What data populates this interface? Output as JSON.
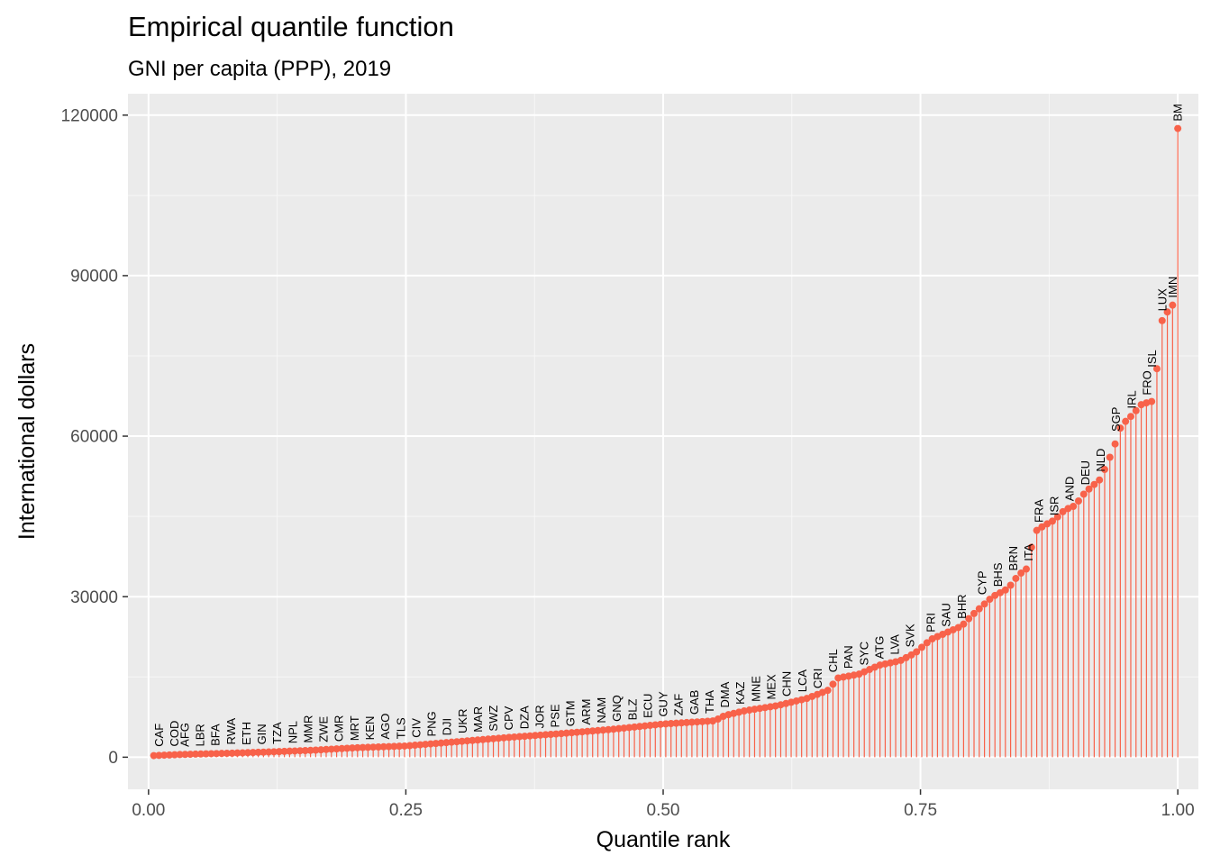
{
  "chart_data": {
    "type": "scatter",
    "title": "Empirical quantile function",
    "subtitle": "GNI per capita (PPP), 2019",
    "xlabel": "Quantile rank",
    "ylabel": "International dollars",
    "xlim": [
      -0.02,
      1.02
    ],
    "ylim": [
      -6000,
      124000
    ],
    "x_ticks": [
      0.0,
      0.25,
      0.5,
      0.75,
      1.0
    ],
    "x_tick_labels": [
      "0.00",
      "0.25",
      "0.50",
      "0.75",
      "1.00"
    ],
    "y_ticks": [
      0,
      30000,
      60000,
      90000,
      120000
    ],
    "y_tick_labels": [
      "0",
      "30000",
      "60000",
      "90000",
      "120000"
    ],
    "grid": true,
    "n_points": 197,
    "color": "#f8624a",
    "panel_background": "#ebebeb",
    "value_knots": [
      [
        0.005,
        300
      ],
      [
        0.03,
        500
      ],
      [
        0.08,
        750
      ],
      [
        0.12,
        1000
      ],
      [
        0.16,
        1300
      ],
      [
        0.2,
        1750
      ],
      [
        0.25,
        2100
      ],
      [
        0.3,
        2900
      ],
      [
        0.35,
        3700
      ],
      [
        0.4,
        4400
      ],
      [
        0.45,
        5200
      ],
      [
        0.48,
        5800
      ],
      [
        0.5,
        6200
      ],
      [
        0.55,
        6800
      ],
      [
        0.56,
        7800
      ],
      [
        0.58,
        8700
      ],
      [
        0.61,
        9600
      ],
      [
        0.64,
        11000
      ],
      [
        0.66,
        12500
      ],
      [
        0.67,
        14800
      ],
      [
        0.69,
        15500
      ],
      [
        0.71,
        17200
      ],
      [
        0.73,
        18000
      ],
      [
        0.745,
        19500
      ],
      [
        0.76,
        22000
      ],
      [
        0.79,
        24500
      ],
      [
        0.8,
        26500
      ],
      [
        0.82,
        30000
      ],
      [
        0.835,
        31500
      ],
      [
        0.845,
        34000
      ],
      [
        0.855,
        35500
      ],
      [
        0.86,
        42000
      ],
      [
        0.87,
        43300
      ],
      [
        0.88,
        44300
      ],
      [
        0.89,
        46200
      ],
      [
        0.9,
        47000
      ],
      [
        0.91,
        49500
      ],
      [
        0.925,
        52000
      ],
      [
        0.935,
        56500
      ],
      [
        0.94,
        59000
      ],
      [
        0.945,
        62000
      ],
      [
        0.955,
        63800
      ],
      [
        0.965,
        66000
      ],
      [
        0.975,
        66500
      ],
      [
        0.98,
        73000
      ],
      [
        0.985,
        82000
      ],
      [
        0.995,
        84500
      ],
      [
        1.0,
        117500
      ]
    ],
    "labels": [
      {
        "text": "CAF",
        "x": 0.01,
        "y": 600
      },
      {
        "text": "COD",
        "x": 0.025,
        "y": 650
      },
      {
        "text": "AFG",
        "x": 0.035,
        "y": 600
      },
      {
        "text": "LBR",
        "x": 0.05,
        "y": 650
      },
      {
        "text": "BFA",
        "x": 0.065,
        "y": 750
      },
      {
        "text": "RWA",
        "x": 0.08,
        "y": 1000
      },
      {
        "text": "ETH",
        "x": 0.095,
        "y": 900
      },
      {
        "text": "GIN",
        "x": 0.11,
        "y": 1000
      },
      {
        "text": "TZA",
        "x": 0.125,
        "y": 1100
      },
      {
        "text": "NPL",
        "x": 0.14,
        "y": 1200
      },
      {
        "text": "MMR",
        "x": 0.155,
        "y": 1300
      },
      {
        "text": "ZWE",
        "x": 0.17,
        "y": 1450
      },
      {
        "text": "CMR",
        "x": 0.185,
        "y": 1550
      },
      {
        "text": "MRT",
        "x": 0.2,
        "y": 1700
      },
      {
        "text": "KEN",
        "x": 0.215,
        "y": 1850
      },
      {
        "text": "AGO",
        "x": 0.23,
        "y": 2000
      },
      {
        "text": "TLS",
        "x": 0.245,
        "y": 2050
      },
      {
        "text": "CIV",
        "x": 0.26,
        "y": 2300
      },
      {
        "text": "PNG",
        "x": 0.275,
        "y": 2500
      },
      {
        "text": "DJI",
        "x": 0.29,
        "y": 2700
      },
      {
        "text": "UKR",
        "x": 0.305,
        "y": 3100
      },
      {
        "text": "MAR",
        "x": 0.32,
        "y": 3300
      },
      {
        "text": "SWZ",
        "x": 0.335,
        "y": 3500
      },
      {
        "text": "CPV",
        "x": 0.35,
        "y": 3700
      },
      {
        "text": "DZA",
        "x": 0.365,
        "y": 3900
      },
      {
        "text": "JOR",
        "x": 0.38,
        "y": 4050
      },
      {
        "text": "PSE",
        "x": 0.395,
        "y": 4200
      },
      {
        "text": "GTM",
        "x": 0.41,
        "y": 4400
      },
      {
        "text": "ARM",
        "x": 0.425,
        "y": 4700
      },
      {
        "text": "NAM",
        "x": 0.44,
        "y": 5000
      },
      {
        "text": "GNQ",
        "x": 0.455,
        "y": 5300
      },
      {
        "text": "BLZ",
        "x": 0.47,
        "y": 5550
      },
      {
        "text": "ECU",
        "x": 0.485,
        "y": 5950
      },
      {
        "text": "GUY",
        "x": 0.5,
        "y": 6200
      },
      {
        "text": "ZAF",
        "x": 0.515,
        "y": 6400
      },
      {
        "text": "GAB",
        "x": 0.53,
        "y": 6600
      },
      {
        "text": "THA",
        "x": 0.545,
        "y": 6800
      },
      {
        "text": "DMA",
        "x": 0.56,
        "y": 7900
      },
      {
        "text": "KAZ",
        "x": 0.575,
        "y": 8500
      },
      {
        "text": "MNE",
        "x": 0.59,
        "y": 9000
      },
      {
        "text": "MEX",
        "x": 0.605,
        "y": 9400
      },
      {
        "text": "CHN",
        "x": 0.62,
        "y": 10000
      },
      {
        "text": "LCA",
        "x": 0.635,
        "y": 10800
      },
      {
        "text": "CRI",
        "x": 0.65,
        "y": 11500
      },
      {
        "text": "CHL",
        "x": 0.665,
        "y": 14500
      },
      {
        "text": "PAN",
        "x": 0.68,
        "y": 15200
      },
      {
        "text": "SYC",
        "x": 0.695,
        "y": 15800
      },
      {
        "text": "ATG",
        "x": 0.71,
        "y": 17000
      },
      {
        "text": "LVA",
        "x": 0.725,
        "y": 17800
      },
      {
        "text": "SVK",
        "x": 0.74,
        "y": 19200
      },
      {
        "text": "PRI",
        "x": 0.76,
        "y": 22000
      },
      {
        "text": "SAU",
        "x": 0.775,
        "y": 23000
      },
      {
        "text": "BHR",
        "x": 0.79,
        "y": 24500
      },
      {
        "text": "CYP",
        "x": 0.81,
        "y": 29000
      },
      {
        "text": "BHS",
        "x": 0.825,
        "y": 30500
      },
      {
        "text": "BRN",
        "x": 0.84,
        "y": 33500
      },
      {
        "text": "ITA",
        "x": 0.855,
        "y": 35300
      },
      {
        "text": "FRA",
        "x": 0.865,
        "y": 42500
      },
      {
        "text": "ISR",
        "x": 0.88,
        "y": 43800
      },
      {
        "text": "AND",
        "x": 0.895,
        "y": 46500
      },
      {
        "text": "DEU",
        "x": 0.91,
        "y": 49500
      },
      {
        "text": "NLD",
        "x": 0.925,
        "y": 52000
      },
      {
        "text": "SGP",
        "x": 0.94,
        "y": 59500
      },
      {
        "text": "IRL",
        "x": 0.955,
        "y": 63800
      },
      {
        "text": "FRO",
        "x": 0.97,
        "y": 66300
      },
      {
        "text": "ISL",
        "x": 0.975,
        "y": 71500
      },
      {
        "text": "LUX",
        "x": 0.985,
        "y": 82000
      },
      {
        "text": "IMN",
        "x": 0.995,
        "y": 84500
      },
      {
        "text": "BM",
        "x": 1.0,
        "y": 117500
      }
    ]
  }
}
